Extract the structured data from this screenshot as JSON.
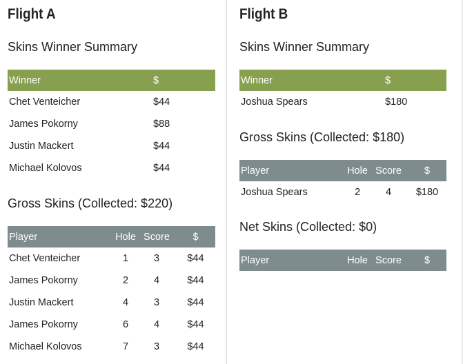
{
  "flight_a": {
    "title": "Flight A",
    "summary_title": "Skins Winner Summary",
    "summary_headers": [
      "Winner",
      "$"
    ],
    "summary_rows": [
      [
        "Chet Venteicher",
        "$44"
      ],
      [
        "James Pokorny",
        "$88"
      ],
      [
        "Justin Mackert",
        "$44"
      ],
      [
        "Michael Kolovos",
        "$44"
      ]
    ],
    "gross_title": "Gross Skins (Collected: $220)",
    "gross_headers": [
      "Player",
      "Hole",
      "Score",
      "$"
    ],
    "gross_rows": [
      [
        "Chet Venteicher",
        "1",
        "3",
        "$44"
      ],
      [
        "James Pokorny",
        "2",
        "4",
        "$44"
      ],
      [
        "Justin Mackert",
        "4",
        "3",
        "$44"
      ],
      [
        "James Pokorny",
        "6",
        "4",
        "$44"
      ],
      [
        "Michael Kolovos",
        "7",
        "3",
        "$44"
      ]
    ]
  },
  "flight_b": {
    "title": "Flight B",
    "summary_title": "Skins Winner Summary",
    "summary_headers": [
      "Winner",
      "$"
    ],
    "summary_rows": [
      [
        "Joshua Spears",
        "$180"
      ]
    ],
    "gross_title": "Gross Skins (Collected: $180)",
    "gross_headers": [
      "Player",
      "Hole",
      "Score",
      "$"
    ],
    "gross_rows": [
      [
        "Joshua Spears",
        "2",
        "4",
        "$180"
      ]
    ],
    "net_title": "Net Skins (Collected: $0)",
    "net_headers": [
      "Player",
      "Hole",
      "Score",
      "$"
    ],
    "net_rows": []
  },
  "colors": {
    "summary_header": "#87a04f",
    "detail_header": "#7f8c8d"
  }
}
